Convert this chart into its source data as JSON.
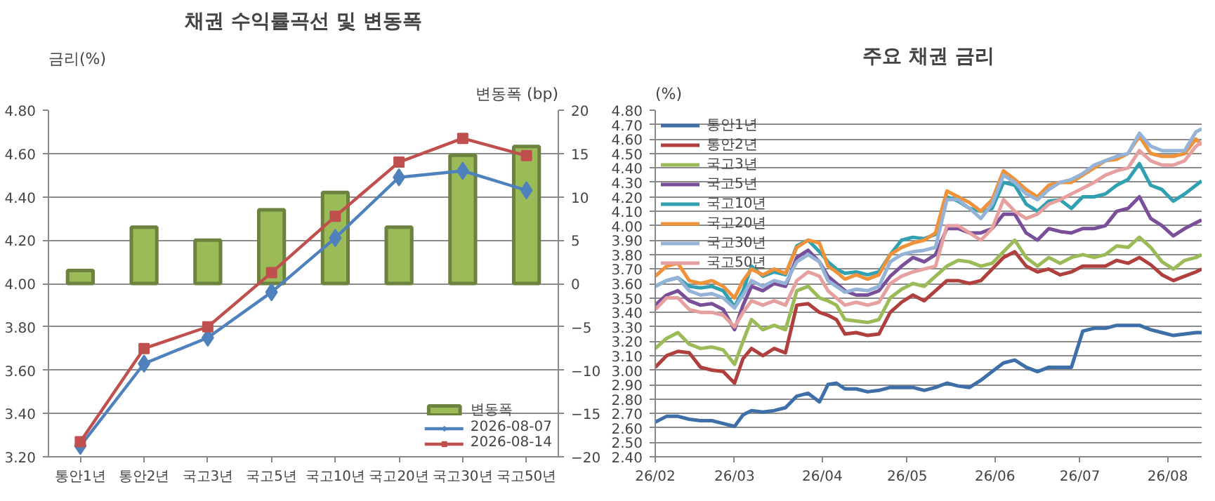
{
  "chart_data": [
    {
      "type": "bar",
      "title": "채권 수익률곡선 및 변동폭",
      "ylabel": "금리(%)",
      "y2label": "변동폭 (bp)",
      "categories": [
        "통안1년",
        "통안2년",
        "국고3년",
        "국고5년",
        "국고10년",
        "국고20년",
        "국고30년",
        "국고50년"
      ],
      "series": [
        {
          "name": "변동폭",
          "type": "bar",
          "axis": "y2",
          "color": "#9bbb59",
          "values": [
            1.5,
            6.5,
            5,
            8.5,
            10.5,
            6.5,
            14.8,
            15.8
          ]
        },
        {
          "name": "2026-08-07",
          "type": "line",
          "color": "#4f81bd",
          "marker": "diamond",
          "values": [
            3.25,
            3.63,
            3.75,
            3.96,
            4.21,
            4.49,
            4.52,
            4.43
          ]
        },
        {
          "name": "2026-08-14",
          "type": "line",
          "color": "#c0504d",
          "marker": "square",
          "values": [
            3.27,
            3.7,
            3.8,
            4.05,
            4.31,
            4.56,
            4.67,
            4.59
          ]
        }
      ],
      "ylim": [
        3.2,
        4.8
      ],
      "yticks": [
        {
          "value": 3.2,
          "label": "3.20"
        },
        {
          "value": 3.4,
          "label": "3.40"
        },
        {
          "value": 3.6,
          "label": "3.60"
        },
        {
          "value": 3.8,
          "label": "3.80"
        },
        {
          "value": 4.0,
          "label": "4.00"
        },
        {
          "value": 4.2,
          "label": "4.20"
        },
        {
          "value": 4.4,
          "label": "4.40"
        },
        {
          "value": 4.6,
          "label": "4.60"
        },
        {
          "value": 4.8,
          "label": "4.80"
        }
      ],
      "y2lim": [
        -20,
        20
      ],
      "y2ticks": [
        -20,
        -15,
        -10,
        -5,
        0,
        5,
        10,
        15,
        20
      ],
      "grid": "y",
      "legend": "bottom right"
    },
    {
      "type": "line",
      "title": "주요 채권 금리",
      "ylabel": "(%)",
      "x": [
        "2026-02-01",
        "2026-02-05",
        "2026-02-09",
        "2026-02-13",
        "2026-02-17",
        "2026-02-21",
        "2026-02-25",
        "2026-03-01",
        "2026-03-04",
        "2026-03-07",
        "2026-03-11",
        "2026-03-15",
        "2026-03-19",
        "2026-03-23",
        "2026-03-27",
        "2026-03-31",
        "2026-04-03",
        "2026-04-06",
        "2026-04-09",
        "2026-04-13",
        "2026-04-17",
        "2026-04-21",
        "2026-04-25",
        "2026-04-29",
        "2026-05-03",
        "2026-05-07",
        "2026-05-11",
        "2026-05-15",
        "2026-05-19",
        "2026-05-23",
        "2026-05-27",
        "2026-05-31",
        "2026-06-04",
        "2026-06-08",
        "2026-06-12",
        "2026-06-16",
        "2026-06-20",
        "2026-06-24",
        "2026-06-28",
        "2026-07-02",
        "2026-07-06",
        "2026-07-10",
        "2026-07-14",
        "2026-07-18",
        "2026-07-22",
        "2026-07-26",
        "2026-07-30",
        "2026-08-03",
        "2026-08-07",
        "2026-08-11",
        "2026-08-13"
      ],
      "series": [
        {
          "name": "통안1년",
          "color": "#3f6fa8",
          "values": [
            2.64,
            2.68,
            2.68,
            2.66,
            2.65,
            2.65,
            2.63,
            2.61,
            2.69,
            2.72,
            2.71,
            2.72,
            2.74,
            2.82,
            2.84,
            2.78,
            2.9,
            2.91,
            2.87,
            2.87,
            2.85,
            2.86,
            2.88,
            2.88,
            2.88,
            2.86,
            2.88,
            2.91,
            2.89,
            2.88,
            2.93,
            2.99,
            3.05,
            3.07,
            3.02,
            2.99,
            3.02,
            3.02,
            3.02,
            3.27,
            3.29,
            3.29,
            3.31,
            3.31,
            3.31,
            3.28,
            3.26,
            3.24,
            3.25,
            3.26,
            3.26
          ]
        },
        {
          "name": "통안2년",
          "color": "#b0403d",
          "values": [
            3.02,
            3.1,
            3.13,
            3.12,
            3.02,
            3.0,
            2.99,
            2.91,
            3.08,
            3.15,
            3.1,
            3.15,
            3.12,
            3.45,
            3.46,
            3.4,
            3.38,
            3.35,
            3.25,
            3.26,
            3.24,
            3.25,
            3.4,
            3.47,
            3.52,
            3.48,
            3.55,
            3.62,
            3.62,
            3.6,
            3.62,
            3.7,
            3.78,
            3.82,
            3.72,
            3.68,
            3.7,
            3.66,
            3.68,
            3.72,
            3.72,
            3.72,
            3.76,
            3.74,
            3.78,
            3.73,
            3.66,
            3.62,
            3.65,
            3.68,
            3.7
          ]
        },
        {
          "name": "국고3년",
          "color": "#9bbb59",
          "values": [
            3.15,
            3.22,
            3.26,
            3.18,
            3.15,
            3.16,
            3.14,
            3.04,
            3.2,
            3.35,
            3.28,
            3.31,
            3.28,
            3.55,
            3.58,
            3.5,
            3.48,
            3.45,
            3.35,
            3.34,
            3.33,
            3.35,
            3.5,
            3.56,
            3.6,
            3.58,
            3.65,
            3.72,
            3.76,
            3.75,
            3.72,
            3.74,
            3.82,
            3.9,
            3.78,
            3.72,
            3.78,
            3.74,
            3.78,
            3.8,
            3.78,
            3.8,
            3.86,
            3.85,
            3.92,
            3.85,
            3.75,
            3.7,
            3.76,
            3.78,
            3.8
          ]
        },
        {
          "name": "국고5년",
          "color": "#7a4f9a",
          "values": [
            3.45,
            3.52,
            3.55,
            3.48,
            3.45,
            3.46,
            3.42,
            3.28,
            3.45,
            3.58,
            3.55,
            3.6,
            3.58,
            3.78,
            3.83,
            3.75,
            3.65,
            3.6,
            3.55,
            3.52,
            3.52,
            3.55,
            3.65,
            3.72,
            3.78,
            3.75,
            3.8,
            3.98,
            3.98,
            3.95,
            3.95,
            3.98,
            4.08,
            4.08,
            3.95,
            3.9,
            3.98,
            3.96,
            3.95,
            3.98,
            3.98,
            4.0,
            4.1,
            4.12,
            4.2,
            4.05,
            4.0,
            3.93,
            3.98,
            4.02,
            4.04
          ]
        },
        {
          "name": "국고10년",
          "color": "#31a0b0",
          "values": [
            3.58,
            3.62,
            3.64,
            3.58,
            3.57,
            3.58,
            3.55,
            3.44,
            3.55,
            3.72,
            3.65,
            3.68,
            3.66,
            3.86,
            3.9,
            3.82,
            3.75,
            3.7,
            3.67,
            3.68,
            3.66,
            3.68,
            3.8,
            3.9,
            3.92,
            3.91,
            3.94,
            4.2,
            4.17,
            4.12,
            4.1,
            4.12,
            4.3,
            4.28,
            4.15,
            4.1,
            4.17,
            4.18,
            4.12,
            4.2,
            4.2,
            4.22,
            4.28,
            4.32,
            4.43,
            4.28,
            4.25,
            4.17,
            4.22,
            4.28,
            4.31
          ]
        },
        {
          "name": "국고20년",
          "color": "#f0923a",
          "values": [
            3.65,
            3.72,
            3.74,
            3.62,
            3.6,
            3.62,
            3.58,
            3.5,
            3.62,
            3.7,
            3.66,
            3.7,
            3.67,
            3.85,
            3.9,
            3.88,
            3.72,
            3.68,
            3.63,
            3.66,
            3.63,
            3.66,
            3.8,
            3.85,
            3.88,
            3.9,
            3.95,
            4.24,
            4.2,
            4.16,
            4.1,
            4.18,
            4.38,
            4.32,
            4.25,
            4.2,
            4.28,
            4.3,
            4.3,
            4.35,
            4.4,
            4.45,
            4.46,
            4.5,
            4.62,
            4.5,
            4.48,
            4.48,
            4.5,
            4.6,
            4.56
          ]
        },
        {
          "name": "국고30년",
          "color": "#95b3d7",
          "values": [
            3.58,
            3.62,
            3.64,
            3.55,
            3.52,
            3.53,
            3.5,
            3.43,
            3.52,
            3.62,
            3.58,
            3.62,
            3.6,
            3.75,
            3.8,
            3.75,
            3.62,
            3.58,
            3.54,
            3.56,
            3.55,
            3.58,
            3.75,
            3.8,
            3.82,
            3.83,
            3.85,
            4.18,
            4.18,
            4.12,
            4.05,
            4.15,
            4.35,
            4.3,
            4.22,
            4.18,
            4.25,
            4.3,
            4.32,
            4.36,
            4.42,
            4.45,
            4.48,
            4.5,
            4.64,
            4.55,
            4.52,
            4.52,
            4.52,
            4.65,
            4.67
          ]
        },
        {
          "name": "국고50년",
          "color": "#e6a0a0",
          "values": [
            3.42,
            3.5,
            3.5,
            3.42,
            3.4,
            3.4,
            3.38,
            3.3,
            3.4,
            3.48,
            3.45,
            3.48,
            3.45,
            3.62,
            3.68,
            3.65,
            3.55,
            3.5,
            3.45,
            3.47,
            3.45,
            3.47,
            3.6,
            3.65,
            3.68,
            3.7,
            3.72,
            4.0,
            4.0,
            3.95,
            3.9,
            3.98,
            4.18,
            4.1,
            4.05,
            4.08,
            4.15,
            4.18,
            4.22,
            4.26,
            4.3,
            4.35,
            4.38,
            4.4,
            4.52,
            4.45,
            4.42,
            4.42,
            4.45,
            4.55,
            4.58
          ]
        }
      ],
      "xlim": [
        "2026-02-01",
        "2026-08-13"
      ],
      "xticks": [
        {
          "value": "2026-02-01",
          "label": "26/02"
        },
        {
          "value": "2026-03-01",
          "label": "26/03"
        },
        {
          "value": "2026-04-01",
          "label": "26/04"
        },
        {
          "value": "2026-05-01",
          "label": "26/05"
        },
        {
          "value": "2026-06-01",
          "label": "26/06"
        },
        {
          "value": "2026-07-01",
          "label": "26/07"
        },
        {
          "value": "2026-08-01",
          "label": "26/08"
        }
      ],
      "ylim": [
        2.4,
        4.8
      ],
      "yticks": [
        {
          "value": 2.4,
          "label": "2.40"
        },
        {
          "value": 2.5,
          "label": "2.50"
        },
        {
          "value": 2.6,
          "label": "2.60"
        },
        {
          "value": 2.7,
          "label": "2.70"
        },
        {
          "value": 2.8,
          "label": "2.80"
        },
        {
          "value": 2.9,
          "label": "2.90"
        },
        {
          "value": 3.0,
          "label": "3.00"
        },
        {
          "value": 3.1,
          "label": "3.10"
        },
        {
          "value": 3.2,
          "label": "3.20"
        },
        {
          "value": 3.3,
          "label": "3.30"
        },
        {
          "value": 3.4,
          "label": "3.40"
        },
        {
          "value": 3.5,
          "label": "3.50"
        },
        {
          "value": 3.6,
          "label": "3.60"
        },
        {
          "value": 3.7,
          "label": "3.70"
        },
        {
          "value": 3.8,
          "label": "3.80"
        },
        {
          "value": 3.9,
          "label": "3.90"
        },
        {
          "value": 4.0,
          "label": "4.00"
        },
        {
          "value": 4.1,
          "label": "4.10"
        },
        {
          "value": 4.2,
          "label": "4.20"
        },
        {
          "value": 4.3,
          "label": "4.30"
        },
        {
          "value": 4.4,
          "label": "4.40"
        },
        {
          "value": 4.5,
          "label": "4.50"
        },
        {
          "value": 4.6,
          "label": "4.60"
        },
        {
          "value": 4.7,
          "label": "4.70"
        },
        {
          "value": 4.8,
          "label": "4.80"
        }
      ],
      "grid": "y",
      "legend": "top left"
    }
  ]
}
